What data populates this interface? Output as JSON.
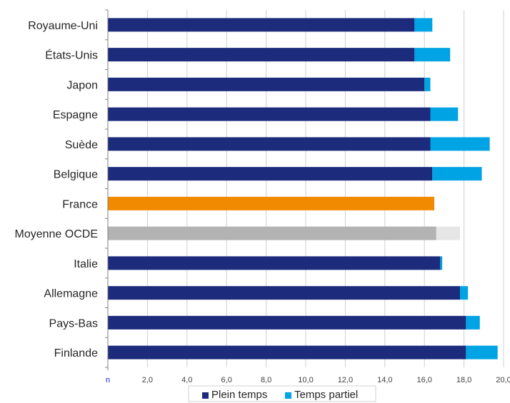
{
  "chart_data": {
    "type": "bar",
    "orientation": "horizontal",
    "stacked": true,
    "categories": [
      "Royaume-Uni",
      "États-Unis",
      "Japon",
      "Espagne",
      "Suède",
      "Belgique",
      "France",
      "Moyenne OCDE",
      "Italie",
      "Allemagne",
      "Pays-Bas",
      "Finlande"
    ],
    "series": [
      {
        "name": "Plein temps",
        "color": "#1c2b7c",
        "values": [
          15.5,
          15.5,
          16.0,
          16.3,
          16.3,
          16.4,
          16.5,
          16.6,
          16.8,
          17.8,
          18.1,
          18.1
        ]
      },
      {
        "name": "Temps partiel",
        "color": "#00a3e4",
        "values": [
          0.9,
          1.8,
          0.3,
          1.4,
          3.0,
          2.5,
          0.0,
          1.2,
          0.1,
          0.4,
          0.7,
          1.6
        ]
      }
    ],
    "highlight_colors": {
      "France": {
        "Plein temps": "#f28a00"
      },
      "Moyenne OCDE": {
        "Plein temps": "#b3b3b3",
        "Temps partiel": "#e6e6e6"
      }
    },
    "xlim": [
      0,
      20
    ],
    "x_ticks": [
      "n",
      "2,0",
      "4,0",
      "6,0",
      "8,0",
      "10,0",
      "12,0",
      "14,0",
      "16,0",
      "18,0",
      "20,0"
    ],
    "grid": true,
    "legend_position": "bottom"
  }
}
